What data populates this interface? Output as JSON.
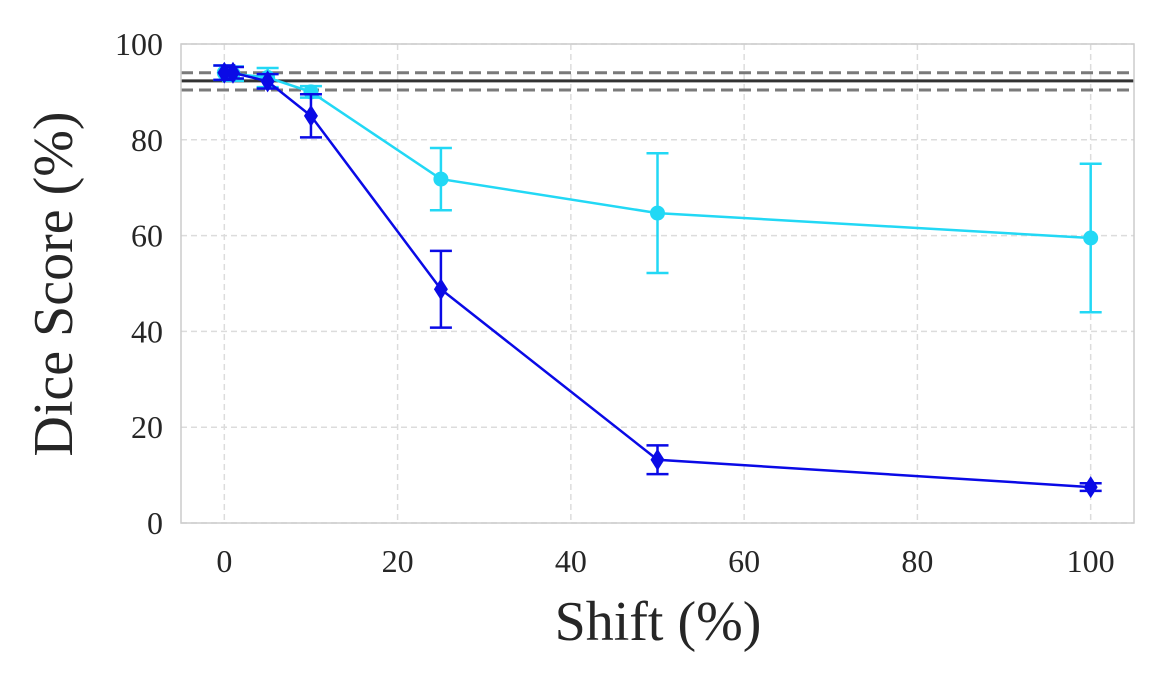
{
  "chart_data": {
    "type": "line",
    "title": "",
    "xlabel": "Shift (%)",
    "ylabel": "Dice Score (%)",
    "xlim": [
      -5,
      105
    ],
    "ylim": [
      0,
      100
    ],
    "xticks": [
      0,
      20,
      40,
      60,
      80,
      100
    ],
    "yticks": [
      0,
      20,
      40,
      60,
      80,
      100
    ],
    "xtick_labels": [
      "0",
      "20",
      "40",
      "60",
      "80",
      "100"
    ],
    "ytick_labels": [
      "0",
      "20",
      "40",
      "60",
      "80",
      "100"
    ],
    "grid": true,
    "series": [
      {
        "name": "cyan series",
        "color": "#22d8f5",
        "marker": "circle",
        "x": [
          0,
          1,
          5,
          10,
          25,
          50,
          100
        ],
        "y": [
          94.0,
          93.8,
          93.0,
          90.0,
          71.8,
          64.7,
          59.5
        ],
        "err": [
          1.5,
          1.5,
          2.0,
          1.2,
          6.5,
          12.5,
          15.5
        ]
      },
      {
        "name": "blue series",
        "color": "#0a0ae6",
        "marker": "diamond",
        "x": [
          0,
          1,
          5,
          10,
          25,
          50,
          100
        ],
        "y": [
          94.0,
          94.0,
          92.2,
          85.0,
          48.8,
          13.2,
          7.5
        ],
        "err": [
          1.5,
          1.2,
          1.5,
          4.5,
          8.0,
          3.0,
          0.8
        ]
      }
    ],
    "reference_lines": [
      {
        "y": 92.3,
        "style": "solid",
        "color": "#333333"
      },
      {
        "y": 94.0,
        "style": "dashed",
        "color": "#7a7a7a"
      },
      {
        "y": 90.4,
        "style": "dashed",
        "color": "#7a7a7a"
      }
    ]
  }
}
